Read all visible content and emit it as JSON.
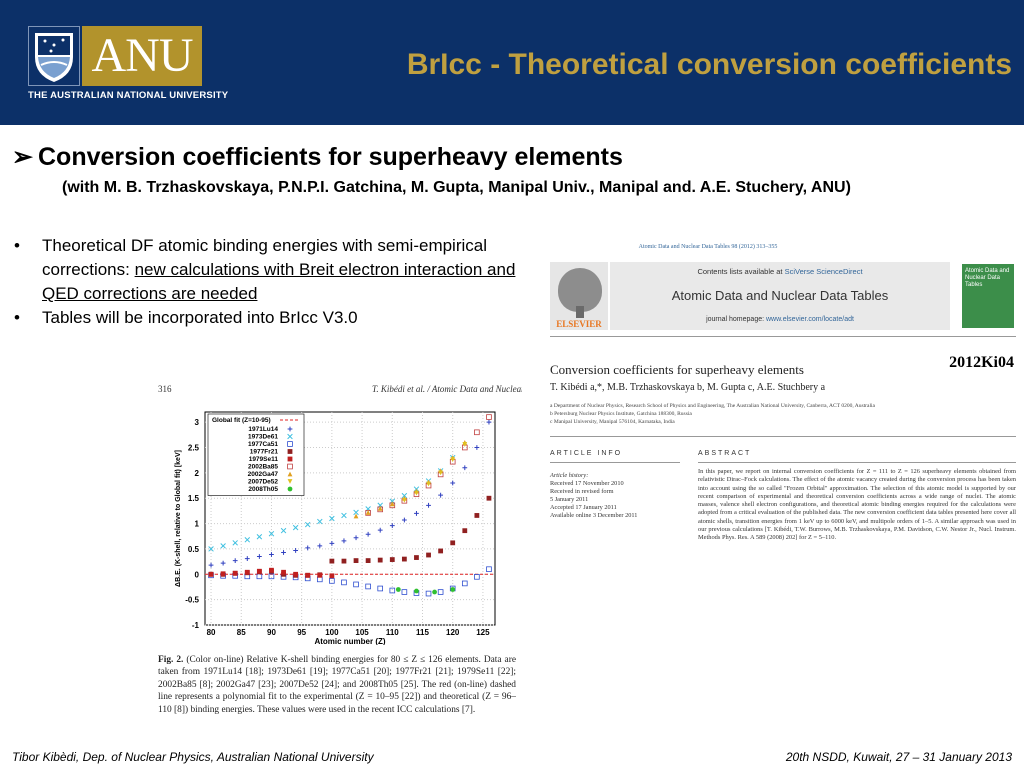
{
  "header": {
    "logo_word": "ANU",
    "university": "THE AUSTRALIAN NATIONAL UNIVERSITY",
    "title": "BrIcc - Theoretical conversion coefficients",
    "bg_color": "#0c3068",
    "title_color": "#c0a040",
    "logo_gold": "#b2932c"
  },
  "heading": {
    "arrow": "➢",
    "text": "Conversion coefficients for superheavy elements",
    "collab": "(with M. B. Trzhaskovskaya, P.N.P.I. Gatchina, M. Gupta, Manipal Univ., Manipal and. A.E. Stuchery, ANU)"
  },
  "bullets": [
    {
      "marker": "•",
      "text_plain": "Theoretical DF atomic binding energies with semi-empirical corrections: ",
      "text_underlined": "new calculations with Breit electron interaction and QED corrections are needed"
    },
    {
      "marker": "•",
      "text_plain": "Tables will be incorporated into BrIcc V3.0",
      "text_underlined": ""
    }
  ],
  "article": {
    "journal_ref": "Atomic Data and Nuclear Data Tables 98 (2012) 313–355",
    "contents_prefix": "Contents lists available at ",
    "contents_link": "SciVerse ScienceDirect",
    "journal_name": "Atomic Data and Nuclear Data Tables",
    "homepage_prefix": "journal homepage: ",
    "homepage_url": "www.elsevier.com/locate/adt",
    "publisher": "ELSEVIER",
    "cover_title": "Atomic Data and Nuclear Data Tables",
    "title": "Conversion coefficients for superheavy elements",
    "ref_tag": "2012Ki04",
    "authors": "T. Kibédi a,*, M.B. Trzhaskovskaya b, M. Gupta c, A.E. Stuchbery a",
    "affiliations": [
      "a Department of Nuclear Physics, Research School of Physics and Engineering, The Australian National University, Canberra, ACT 0200, Australia",
      "b Petersburg Nuclear Physics Institute, Gatchina 188300, Russia",
      "c Manipal University, Manipal 576104, Karnataka, India"
    ],
    "article_info_heading": "ARTICLE INFO",
    "abstract_heading": "ABSTRACT",
    "history": [
      "Article history:",
      "Received 17 November 2010",
      "Received in revised form",
      "5 January 2011",
      "Accepted 17 January 2011",
      "Available online 3 December 2011"
    ],
    "abstract": "In this paper, we report on internal conversion coefficients for Z = 111 to Z = 126 superheavy elements obtained from relativistic Dirac–Fock calculations. The effect of the atomic vacancy created during the conversion process has been taken into account using the so called \"Frozen Orbital\" approximation. The selection of this atomic model is supported by our recent comparison of experimental and theoretical conversion coefficients across a wide range of nuclei. The atomic masses, valence shell electron configurations, and theoretical atomic binding energies required for the calculations were adopted from a critical evaluation of the published data. The new conversion coefficient data tables presented here cover all atomic shells, transition energies from 1 keV up to 6000 keV, and multipole orders of 1–5. A similar approach was used in our previous calculations [T. Kibédi, T.W. Burrows, M.B. Trzhaskovskaya, P.M. Davidson, C.W. Nestor Jr., Nucl. Instrum. Methods Phys. Res. A 589 (2008) 202] for Z = 5–110."
  },
  "figure": {
    "page_number": "316",
    "running_head": "T. Kibédi et al. / Atomic Data and Nuclear",
    "caption_label": "Fig. 2.",
    "caption": "(Color on-line) Relative K-shell binding energies for 80 ≤ Z ≤ 126 elements. Data are taken from 1971Lu14 [18]; 1973De61 [19]; 1977Ca51 [20]; 1977Fr21 [21]; 1979Se11 [22]; 2002Ba85 [8]; 2002Ga47 [23]; 2007De52 [24]; and 2008Th05 [25]. The red (on-line) dashed line represents a polynomial fit to the experimental (Z = 10–95 [22]) and theoretical (Z = 96–110 [8]) binding energies. These values were used in the recent ICC calculations [7]."
  },
  "chart_data": {
    "type": "scatter",
    "xlabel": "Atomic number (Z)",
    "ylabel": "ΔB.E. (K-shell, relative to Global fit) [keV]",
    "xlim": [
      79,
      127
    ],
    "ylim": [
      -1,
      3.2
    ],
    "xticks": [
      80,
      85,
      90,
      95,
      100,
      105,
      110,
      115,
      120,
      125
    ],
    "yticks": [
      -1,
      -0.5,
      0,
      0.5,
      1,
      1.5,
      2,
      2.5,
      3
    ],
    "grid": true,
    "legend_placement": "top-left",
    "fit_line": {
      "name": "Global fit (Z=10-95)",
      "color": "#e02020",
      "y": 0
    },
    "series": [
      {
        "name": "1971Lu14",
        "color": "#3040c0",
        "marker": "plus",
        "x": [
          80,
          82,
          84,
          86,
          88,
          90,
          92,
          94,
          96,
          98,
          100,
          102,
          104,
          106,
          108,
          110,
          112,
          114,
          116,
          118,
          120,
          122,
          124,
          126
        ],
        "y": [
          0.18,
          0.22,
          0.27,
          0.31,
          0.35,
          0.39,
          0.43,
          0.47,
          0.52,
          0.56,
          0.61,
          0.66,
          0.72,
          0.79,
          0.87,
          0.96,
          1.07,
          1.2,
          1.36,
          1.56,
          1.8,
          2.1,
          2.5,
          3.0
        ]
      },
      {
        "name": "1973De61",
        "color": "#40c0e0",
        "marker": "cross",
        "x": [
          80,
          82,
          84,
          86,
          88,
          90,
          92,
          94,
          96,
          98,
          100,
          102,
          104,
          106,
          108,
          110,
          112,
          114,
          116,
          118,
          120
        ],
        "y": [
          0.5,
          0.56,
          0.62,
          0.68,
          0.74,
          0.8,
          0.86,
          0.92,
          0.98,
          1.04,
          1.1,
          1.16,
          1.22,
          1.29,
          1.36,
          1.44,
          1.55,
          1.68,
          1.84,
          2.04,
          2.3
        ]
      },
      {
        "name": "1977Ca51",
        "color": "#3050d0",
        "marker": "square-open",
        "x": [
          80,
          82,
          84,
          86,
          88,
          90,
          92,
          94,
          96,
          98,
          100,
          102,
          104,
          106,
          108,
          110,
          112,
          114,
          116,
          118,
          120,
          122,
          124,
          126
        ],
        "y": [
          -0.02,
          -0.03,
          -0.03,
          -0.04,
          -0.04,
          -0.04,
          -0.05,
          -0.06,
          -0.08,
          -0.1,
          -0.13,
          -0.16,
          -0.2,
          -0.24,
          -0.28,
          -0.32,
          -0.35,
          -0.37,
          -0.38,
          -0.35,
          -0.28,
          -0.18,
          -0.05,
          0.1
        ]
      },
      {
        "name": "1977Fr21",
        "color": "#902020",
        "marker": "square",
        "x": [
          80,
          82,
          84,
          86,
          88,
          90,
          92,
          94,
          96,
          98,
          100,
          102,
          104,
          106,
          108,
          110,
          112,
          114,
          116,
          118,
          120,
          122,
          124,
          126
        ],
        "y": [
          0.0,
          0.0,
          0.02,
          0.03,
          0.05,
          0.06,
          0.0,
          -0.02,
          -0.02,
          -0.01,
          0.26,
          0.26,
          0.27,
          0.27,
          0.28,
          0.29,
          0.3,
          0.33,
          0.38,
          0.46,
          0.62,
          0.86,
          1.16,
          1.5
        ]
      },
      {
        "name": "1979Se11",
        "color": "#c02020",
        "marker": "square",
        "x": [
          80,
          82,
          84,
          86,
          88,
          90,
          92,
          94,
          96,
          98,
          100
        ],
        "y": [
          0.0,
          0.01,
          0.02,
          0.04,
          0.06,
          0.08,
          0.04,
          0.0,
          -0.02,
          -0.02,
          -0.03
        ]
      },
      {
        "name": "2002Ba85",
        "color": "#c04040",
        "marker": "square-dot",
        "x": [
          106,
          108,
          110,
          112,
          114,
          116,
          118,
          120,
          122,
          124,
          126
        ],
        "y": [
          1.21,
          1.28,
          1.36,
          1.45,
          1.58,
          1.75,
          1.97,
          2.22,
          2.5,
          2.8,
          3.1
        ]
      },
      {
        "name": "2002Ga47",
        "color": "#e0a020",
        "marker": "triangle",
        "x": [
          104,
          106,
          108,
          110,
          112,
          114,
          116,
          118,
          120,
          122
        ],
        "y": [
          1.15,
          1.22,
          1.3,
          1.39,
          1.5,
          1.64,
          1.82,
          2.04,
          2.3,
          2.6
        ]
      },
      {
        "name": "2007De52",
        "color": "#e0c020",
        "marker": "triangle-down",
        "x": [
          112,
          114,
          116,
          118,
          120,
          122
        ],
        "y": [
          1.46,
          1.6,
          1.78,
          2.0,
          2.26,
          2.56
        ]
      },
      {
        "name": "2008Th05",
        "color": "#30c030",
        "marker": "circle",
        "x": [
          111,
          114,
          117,
          120
        ],
        "y": [
          -0.3,
          -0.33,
          -0.35,
          -0.3
        ]
      }
    ]
  },
  "footer": {
    "left": "Tibor Kibèdi, Dep. of Nuclear Physics, Australian National University",
    "right": "20th NSDD, Kuwait, 27 – 31 January 2013"
  }
}
